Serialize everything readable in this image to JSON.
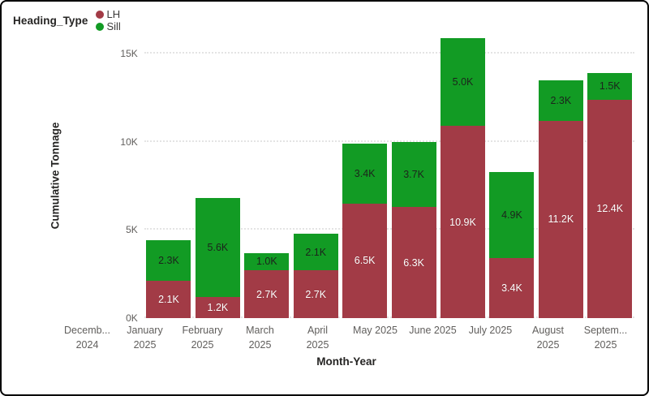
{
  "chart_data": {
    "type": "bar",
    "stacked": true,
    "title": "",
    "xlabel": "Month-Year",
    "ylabel": "Cumulative Tonnage",
    "ylim": [
      0,
      16.2
    ],
    "grid": "horizontal-dotted",
    "legend": {
      "title": "Heading_Type",
      "position": "top-left",
      "items": [
        {
          "label": "LH",
          "color": "#a23b46"
        },
        {
          "label": "Sill",
          "color": "#129b24"
        }
      ]
    },
    "yticks": [
      {
        "label": "0K",
        "value": 0
      },
      {
        "label": "5K",
        "value": 5
      },
      {
        "label": "10K",
        "value": 10
      },
      {
        "label": "15K",
        "value": 15
      }
    ],
    "categories": [
      {
        "line1": "Decemb...",
        "line2": "2024"
      },
      {
        "line1": "January",
        "line2": "2025"
      },
      {
        "line1": "February",
        "line2": "2025"
      },
      {
        "line1": "March",
        "line2": "2025"
      },
      {
        "line1": "April",
        "line2": "2025"
      },
      {
        "line1": "May 2025",
        "line2": ""
      },
      {
        "line1": "June 2025",
        "line2": ""
      },
      {
        "line1": "July 2025",
        "line2": ""
      },
      {
        "line1": "August",
        "line2": "2025"
      },
      {
        "line1": "Septem...",
        "line2": "2025"
      }
    ],
    "series": [
      {
        "name": "LH",
        "color": "#a23b46",
        "label_style": "on-red",
        "values": [
          2.1,
          1.2,
          2.7,
          2.7,
          6.5,
          6.3,
          10.9,
          3.4,
          11.2,
          12.4
        ],
        "labels": [
          "2.1K",
          "1.2K",
          "2.7K",
          "2.7K",
          "6.5K",
          "6.3K",
          "10.9K",
          "3.4K",
          "11.2K",
          "12.4K"
        ]
      },
      {
        "name": "Sill",
        "color": "#129b24",
        "label_style": "on-green",
        "values": [
          2.3,
          5.6,
          1.0,
          2.1,
          3.4,
          3.7,
          5.0,
          4.9,
          2.3,
          1.5
        ],
        "labels": [
          "2.3K",
          "5.6K",
          "1.0K",
          "2.1K",
          "3.4K",
          "3.7K",
          "5.0K",
          "4.9K",
          "2.3K",
          "1.5K"
        ]
      }
    ]
  }
}
